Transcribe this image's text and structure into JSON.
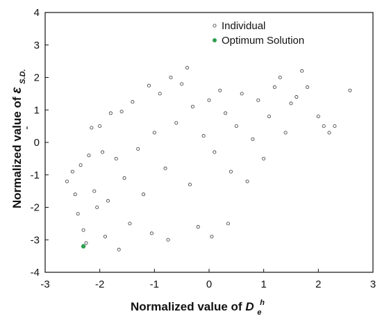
{
  "chart_data": {
    "type": "scatter",
    "xlim": [
      -3,
      3
    ],
    "ylim": [
      -4,
      4
    ],
    "x_ticks": [
      "-3",
      "-2",
      "-1",
      "0",
      "1",
      "2",
      "3"
    ],
    "y_ticks": [
      "-4",
      "-3",
      "-2",
      "-1",
      "0",
      "1",
      "2",
      "3",
      "4"
    ],
    "xlabel": {
      "prefix": "Normalized value of ",
      "symbol": "D",
      "subscript": "e",
      "superscript": "h"
    },
    "ylabel": {
      "prefix": "Normalized value of ",
      "symbol": "ε",
      "subscript": "S.D."
    },
    "grid": false,
    "legend_position": "top-left",
    "legend": [
      {
        "name": "Individual",
        "marker": "hollow-circle",
        "color": "#333333"
      },
      {
        "name": "Optimum Solution",
        "marker": "filled-circle",
        "color": "#2e9e4f"
      }
    ],
    "series": [
      {
        "name": "Individual",
        "points": [
          [
            -2.6,
            -1.2
          ],
          [
            -2.5,
            -0.9
          ],
          [
            -2.45,
            -1.6
          ],
          [
            -2.4,
            -2.2
          ],
          [
            -2.35,
            -0.7
          ],
          [
            -2.3,
            -2.7
          ],
          [
            -2.25,
            -3.1
          ],
          [
            -2.2,
            -0.4
          ],
          [
            -2.15,
            0.45
          ],
          [
            -2.1,
            -1.5
          ],
          [
            -2.05,
            -2.0
          ],
          [
            -2.0,
            0.5
          ],
          [
            -1.95,
            -0.3
          ],
          [
            -1.9,
            -2.9
          ],
          [
            -1.85,
            -1.8
          ],
          [
            -1.8,
            0.9
          ],
          [
            -1.7,
            -0.5
          ],
          [
            -1.65,
            -3.3
          ],
          [
            -1.6,
            0.95
          ],
          [
            -1.55,
            -1.1
          ],
          [
            -1.45,
            -2.5
          ],
          [
            -1.4,
            1.25
          ],
          [
            -1.3,
            -0.2
          ],
          [
            -1.2,
            -1.6
          ],
          [
            -1.1,
            1.75
          ],
          [
            -1.05,
            -2.8
          ],
          [
            -1.0,
            0.3
          ],
          [
            -0.9,
            1.5
          ],
          [
            -0.8,
            -0.8
          ],
          [
            -0.75,
            -3.0
          ],
          [
            -0.7,
            2.0
          ],
          [
            -0.6,
            0.6
          ],
          [
            -0.5,
            1.8
          ],
          [
            -0.4,
            2.3
          ],
          [
            -0.35,
            -1.3
          ],
          [
            -0.3,
            1.1
          ],
          [
            -0.2,
            -2.6
          ],
          [
            -0.1,
            0.2
          ],
          [
            0.0,
            1.3
          ],
          [
            0.05,
            -2.9
          ],
          [
            0.1,
            -0.3
          ],
          [
            0.2,
            1.6
          ],
          [
            0.3,
            0.9
          ],
          [
            0.35,
            -2.5
          ],
          [
            0.4,
            -0.9
          ],
          [
            0.5,
            0.5
          ],
          [
            0.6,
            1.5
          ],
          [
            0.7,
            -1.2
          ],
          [
            0.8,
            0.1
          ],
          [
            0.9,
            1.3
          ],
          [
            1.0,
            -0.5
          ],
          [
            1.1,
            0.8
          ],
          [
            1.2,
            1.7
          ],
          [
            1.3,
            2.0
          ],
          [
            1.4,
            0.3
          ],
          [
            1.5,
            1.2
          ],
          [
            1.6,
            1.4
          ],
          [
            1.7,
            2.2
          ],
          [
            1.8,
            1.7
          ],
          [
            2.0,
            0.8
          ],
          [
            2.1,
            0.5
          ],
          [
            2.2,
            0.3
          ],
          [
            2.3,
            0.5
          ],
          [
            2.58,
            1.6
          ]
        ]
      },
      {
        "name": "Optimum Solution",
        "points": [
          [
            -2.3,
            -3.2
          ]
        ]
      }
    ]
  }
}
